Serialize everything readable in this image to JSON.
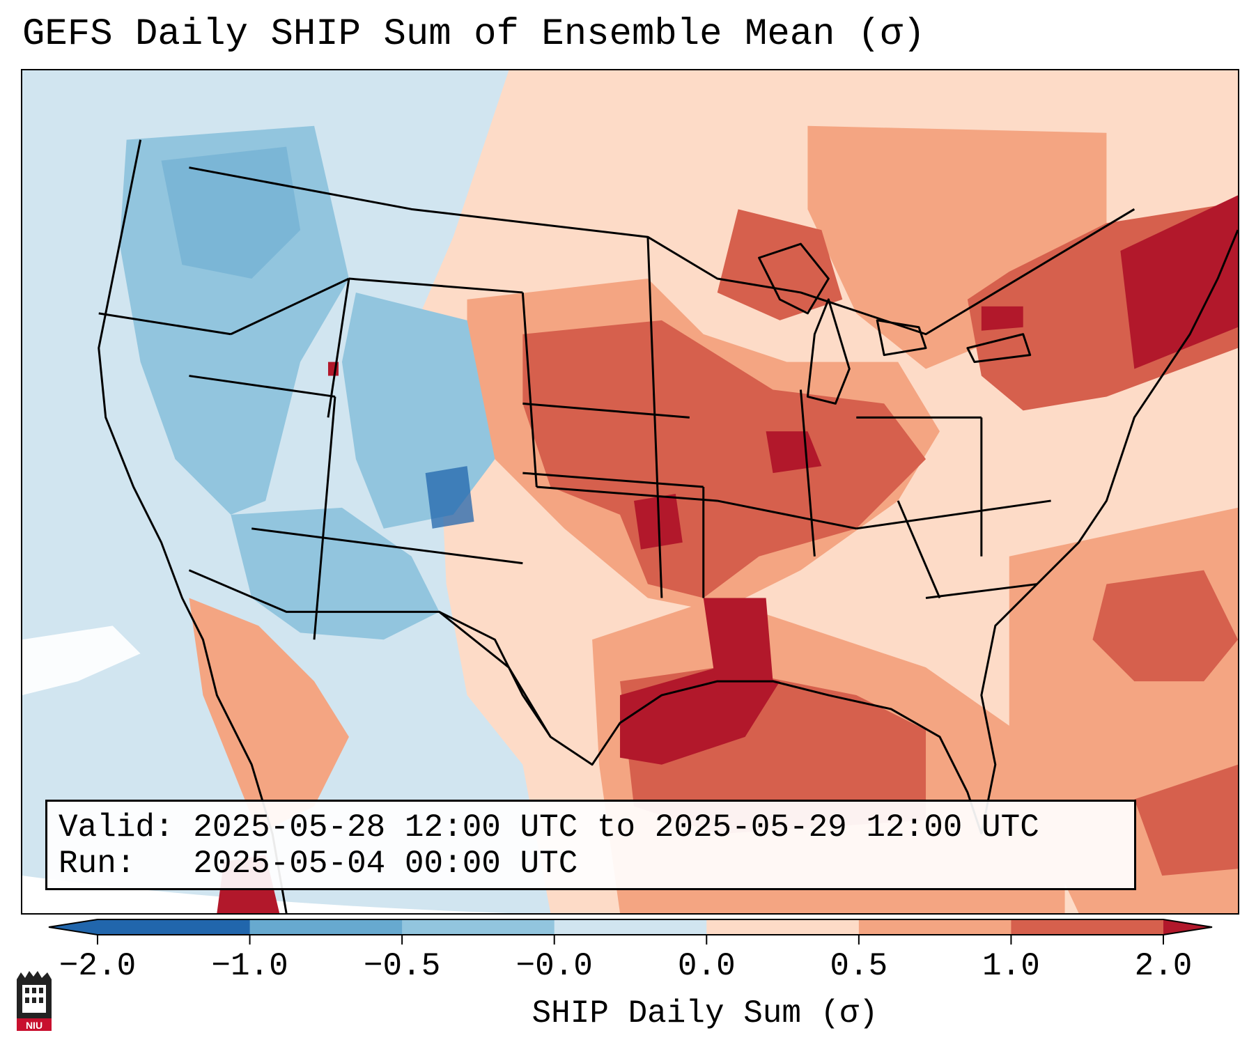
{
  "title": "GEFS Daily SHIP Sum of Ensemble Mean (σ)",
  "info": {
    "valid_line": "Valid: 2025-05-28 12:00 UTC to 2025-05-29 12:00 UTC",
    "run_line": "Run:   2025-05-04 00:00 UTC"
  },
  "colorbar": {
    "label": "SHIP Daily Sum (σ)",
    "ticks": [
      "−2.0",
      "−1.0",
      "−0.5",
      "−0.0",
      "0.0",
      "0.5",
      "1.0",
      "2.0"
    ],
    "colors": [
      "#2166ac",
      "#67a9cf",
      "#92c5de",
      "#d1e5f0",
      "#fddbc7",
      "#f4a582",
      "#d6604d",
      "#b2182b"
    ]
  },
  "logo": {
    "text": "NIU",
    "color": "#c8102e"
  },
  "map": {
    "background_color": "#d1e5f0",
    "state_line_color": "#000000",
    "region_level_sigma": {
      "pacific_northwest": -1.0,
      "great_basin": -0.5,
      "colorado_wyoming": -1.0,
      "desert_southwest": -0.5,
      "northern_plains": 0.5,
      "central_plains": 1.0,
      "mid_mississippi_valley": 1.0,
      "texas_gulf_coast": 2.0,
      "lower_mississippi": 2.0,
      "southeast": 0.0,
      "northeast_new_england": 2.0,
      "great_lakes": 1.0,
      "gulf_of_mexico": 1.0,
      "western_atlantic": 0.5
    }
  }
}
